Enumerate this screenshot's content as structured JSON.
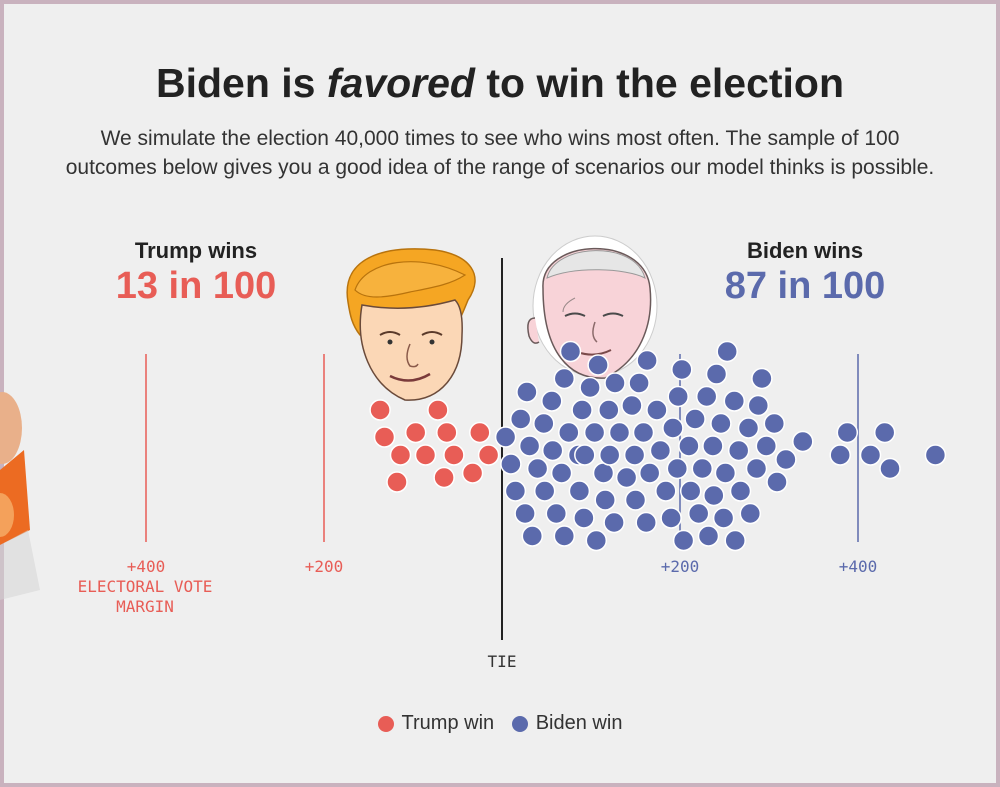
{
  "header": {
    "title_part1": "Biden is",
    "title_em": "favored",
    "title_part2": "to win the election",
    "subtitle": "We simulate the election 40,000 times to see who wins most often. The sample of 100 outcomes below gives you a good idea of the range of scenarios our model thinks is possible."
  },
  "trump": {
    "label": "Trump wins",
    "odds": "13 in 100"
  },
  "biden": {
    "label": "Biden wins",
    "odds": "87 in 100"
  },
  "axis": {
    "ticks": [
      {
        "side": "trump",
        "label": "+400",
        "value": -400
      },
      {
        "side": "trump",
        "label": "+200",
        "value": -200
      },
      {
        "side": "biden",
        "label": "+200",
        "value": 200
      },
      {
        "side": "biden",
        "label": "+400",
        "value": 400
      }
    ],
    "axis_title_line1": "ELECTORAL VOTE",
    "axis_title_line2": "MARGIN",
    "tie_label": "TIE"
  },
  "legend": {
    "trump": "Trump win",
    "biden": "Biden win"
  },
  "colors": {
    "trump": "#e85d56",
    "biden": "#5b6aac",
    "tie": "#222222"
  },
  "icons": {
    "trump": "trump-portrait-illustration",
    "biden": "biden-portrait-illustration"
  },
  "chart_data": {
    "type": "scatter",
    "title": "Biden is favored to win the election",
    "xlabel": "ELECTORAL VOTE MARGIN",
    "xlim": [
      -440,
      440
    ],
    "x_tick_labels": [
      "+400",
      "+200",
      "TIE",
      "+200",
      "+400"
    ],
    "series": [
      {
        "name": "Trump win",
        "color": "#e85d56",
        "margins": [
          -137,
          -132,
          -118,
          -114,
          -97,
          -86,
          -72,
          -65,
          -62,
          -54,
          -33,
          -25,
          -15
        ]
      },
      {
        "name": "Biden win",
        "color": "#5b6aac",
        "margins": [
          4,
          10,
          15,
          21,
          26,
          28,
          31,
          34,
          40,
          47,
          48,
          56,
          57,
          61,
          67,
          70,
          70,
          75,
          77,
          86,
          87,
          90,
          92,
          93,
          99,
          104,
          106,
          108,
          114,
          116,
          120,
          121,
          126,
          127,
          132,
          140,
          146,
          149,
          150,
          154,
          159,
          162,
          163,
          166,
          174,
          178,
          184,
          190,
          192,
          197,
          198,
          202,
          204,
          210,
          212,
          217,
          221,
          225,
          230,
          232,
          237,
          238,
          241,
          246,
          249,
          251,
          253,
          261,
          262,
          266,
          268,
          277,
          279,
          286,
          288,
          292,
          297,
          306,
          309,
          319,
          338,
          380,
          414,
          388,
          487,
          430,
          436
        ]
      }
    ]
  }
}
